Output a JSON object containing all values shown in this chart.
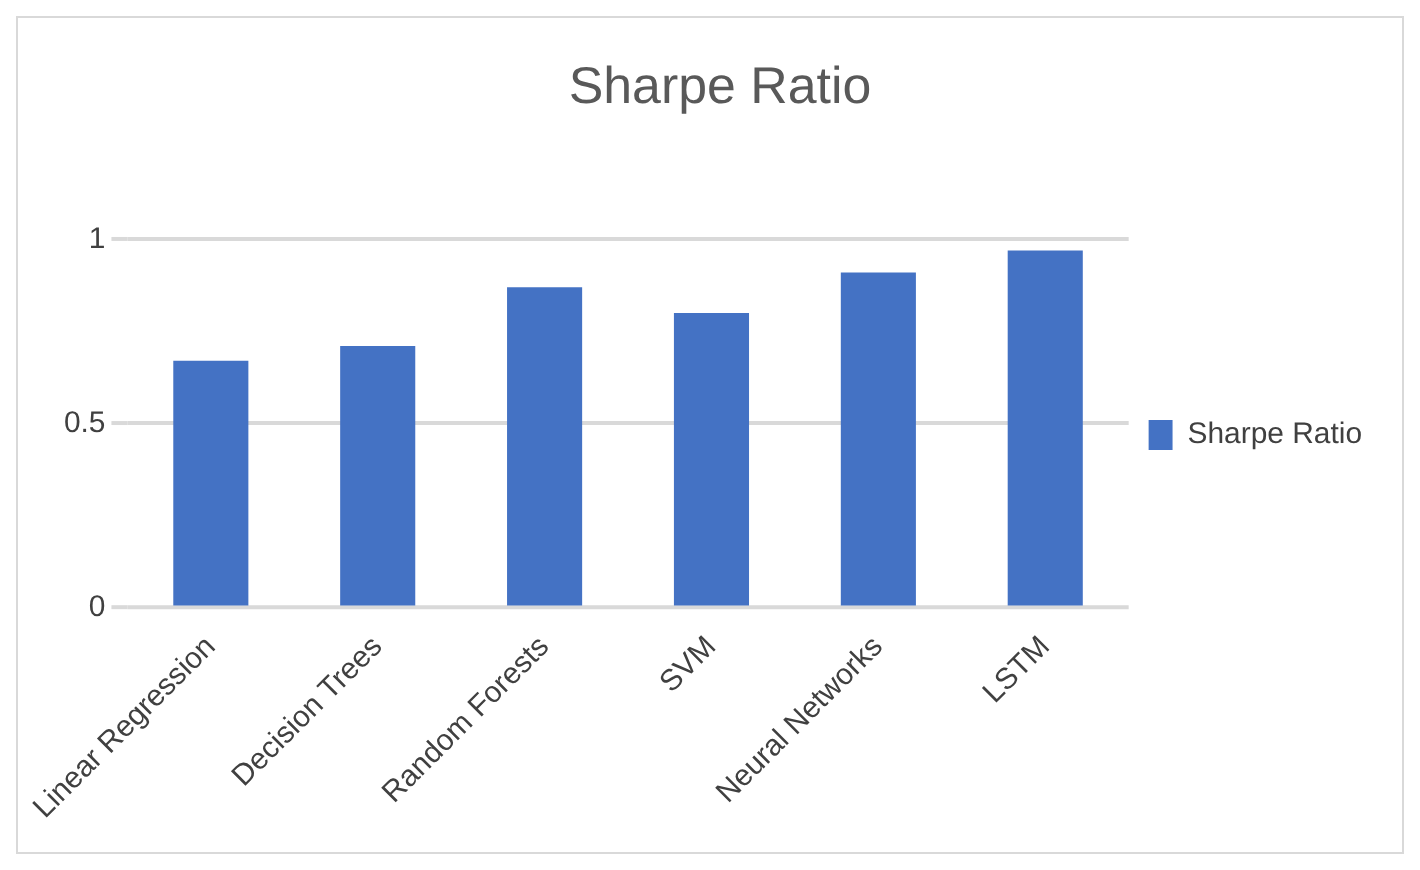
{
  "chart_data": {
    "type": "bar",
    "title": "Sharpe Ratio",
    "categories": [
      "Linear Regression",
      "Decision Trees",
      "Random Forests",
      "SVM",
      "Neural Networks",
      "LSTM"
    ],
    "series": [
      {
        "name": "Sharpe Ratio",
        "color": "#4472c4",
        "values": [
          0.67,
          0.71,
          0.87,
          0.8,
          0.91,
          0.97
        ]
      }
    ],
    "ylim": [
      0,
      1
    ],
    "yticks": [
      0,
      0.5,
      1
    ],
    "grid": "y",
    "legend": "right"
  }
}
